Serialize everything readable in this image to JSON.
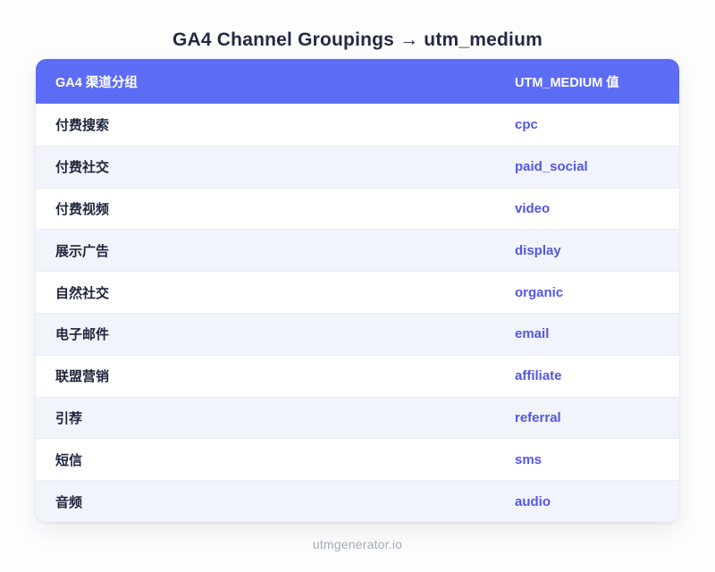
{
  "title": "GA4 Channel Groupings → utm_medium",
  "chart_data": {
    "type": "table",
    "title": "GA4 Channel Groupings → utm_medium",
    "columns": [
      "GA4 渠道分组",
      "UTM_MEDIUM 值"
    ],
    "rows": [
      [
        "付费搜索",
        "cpc"
      ],
      [
        "付费社交",
        "paid_social"
      ],
      [
        "付费视频",
        "video"
      ],
      [
        "展示广告",
        "display"
      ],
      [
        "自然社交",
        "organic"
      ],
      [
        "电子邮件",
        "email"
      ],
      [
        "联盟营销",
        "affiliate"
      ],
      [
        "引荐",
        "referral"
      ],
      [
        "短信",
        "sms"
      ],
      [
        "音频",
        "audio"
      ]
    ],
    "legend_position": "none",
    "grid": "row-stripes"
  },
  "footer": {
    "brand": "utmgenerator.io"
  },
  "colors": {
    "header_bg": "#5c6cf5",
    "header_text": "#ffffff",
    "value_text": "#5357e2",
    "label_text": "#20263c",
    "row_alt_bg": "#f1f4fb",
    "divider": "#e9ecf3",
    "title_text": "#232a42",
    "footer_text": "#a3a9b5",
    "page_bg": "#fdfdfe"
  }
}
